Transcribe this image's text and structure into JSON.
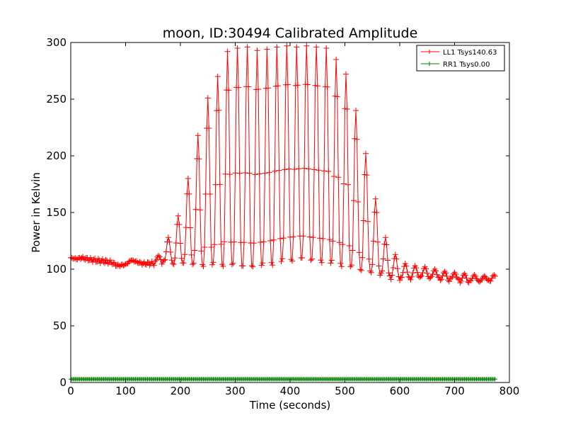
{
  "chart_data": {
    "type": "line",
    "title": "moon, ID:30494 Calibrated Amplitude",
    "xlabel": "Time (seconds)",
    "ylabel": "Power in Kelvin",
    "xlim": [
      0,
      800
    ],
    "ylim": [
      0,
      300
    ],
    "xticks": [
      0,
      100,
      200,
      300,
      400,
      500,
      600,
      700,
      800
    ],
    "yticks": [
      0,
      50,
      100,
      150,
      200,
      250,
      300
    ],
    "grid": false,
    "legend_position": "top-right",
    "sample_interval_s": 2,
    "series": [
      {
        "name": "LL1 Tsys140.63",
        "color": "#ff0000",
        "marker": "+",
        "baseline": {
          "x": [
            0,
            10,
            20,
            40,
            60,
            75,
            85,
            100,
            110,
            130,
            150,
            170,
            200,
            230,
            250,
            270,
            300,
            330,
            360,
            390,
            420,
            450,
            480,
            510,
            530,
            560,
            580,
            600,
            620,
            640,
            660,
            680,
            700,
            720,
            740,
            760,
            775
          ],
          "y": [
            110,
            109,
            110,
            108,
            107,
            106,
            103,
            104,
            108,
            105,
            105,
            106,
            105,
            104,
            103,
            104,
            103,
            102,
            104,
            107,
            109,
            107,
            105,
            102,
            99,
            96,
            93,
            91,
            92,
            93,
            92,
            91,
            90,
            89,
            89,
            90,
            89
          ]
        },
        "peaks": {
          "x": [
            160,
            178,
            196,
            214,
            232,
            250,
            268,
            286,
            304,
            322,
            340,
            358,
            376,
            394,
            412,
            430,
            448,
            466,
            484,
            502,
            520,
            538,
            556,
            574,
            592,
            610,
            628,
            646,
            664,
            682,
            700,
            718,
            736,
            754,
            772
          ],
          "y": [
            112,
            128,
            147,
            180,
            218,
            251,
            270,
            292,
            295,
            296,
            293,
            294,
            296,
            297,
            296,
            297,
            296,
            295,
            285,
            272,
            240,
            202,
            162,
            128,
            113,
            105,
            103,
            102,
            100,
            98,
            97,
            96,
            95,
            94,
            95
          ]
        }
      },
      {
        "name": "RR1 Tsys0.00",
        "color": "#008000",
        "marker": "+",
        "x": [
          0,
          775
        ],
        "y": [
          3,
          3
        ]
      }
    ]
  }
}
